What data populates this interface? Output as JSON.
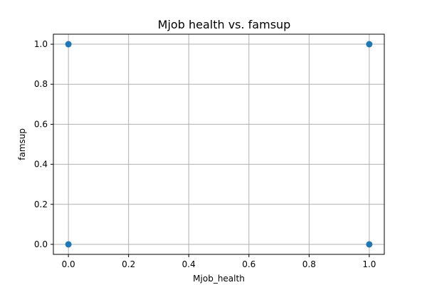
{
  "chart_data": {
    "type": "scatter",
    "title": "Mjob health vs. famsup",
    "xlabel": "Mjob_health",
    "ylabel": "famsup",
    "xlim": [
      -0.05,
      1.05
    ],
    "ylim": [
      -0.05,
      1.05
    ],
    "xticks": [
      0.0,
      0.2,
      0.4,
      0.6,
      0.8,
      1.0
    ],
    "yticks": [
      0.0,
      0.2,
      0.4,
      0.6,
      0.8,
      1.0
    ],
    "xtick_labels": [
      "0.0",
      "0.2",
      "0.4",
      "0.6",
      "0.8",
      "1.0"
    ],
    "ytick_labels": [
      "0.0",
      "0.2",
      "0.4",
      "0.6",
      "0.8",
      "1.0"
    ],
    "grid": true,
    "points": [
      {
        "x": 0,
        "y": 0
      },
      {
        "x": 0,
        "y": 1
      },
      {
        "x": 1,
        "y": 0
      },
      {
        "x": 1,
        "y": 1
      }
    ],
    "marker_color": "#1f77b4"
  }
}
